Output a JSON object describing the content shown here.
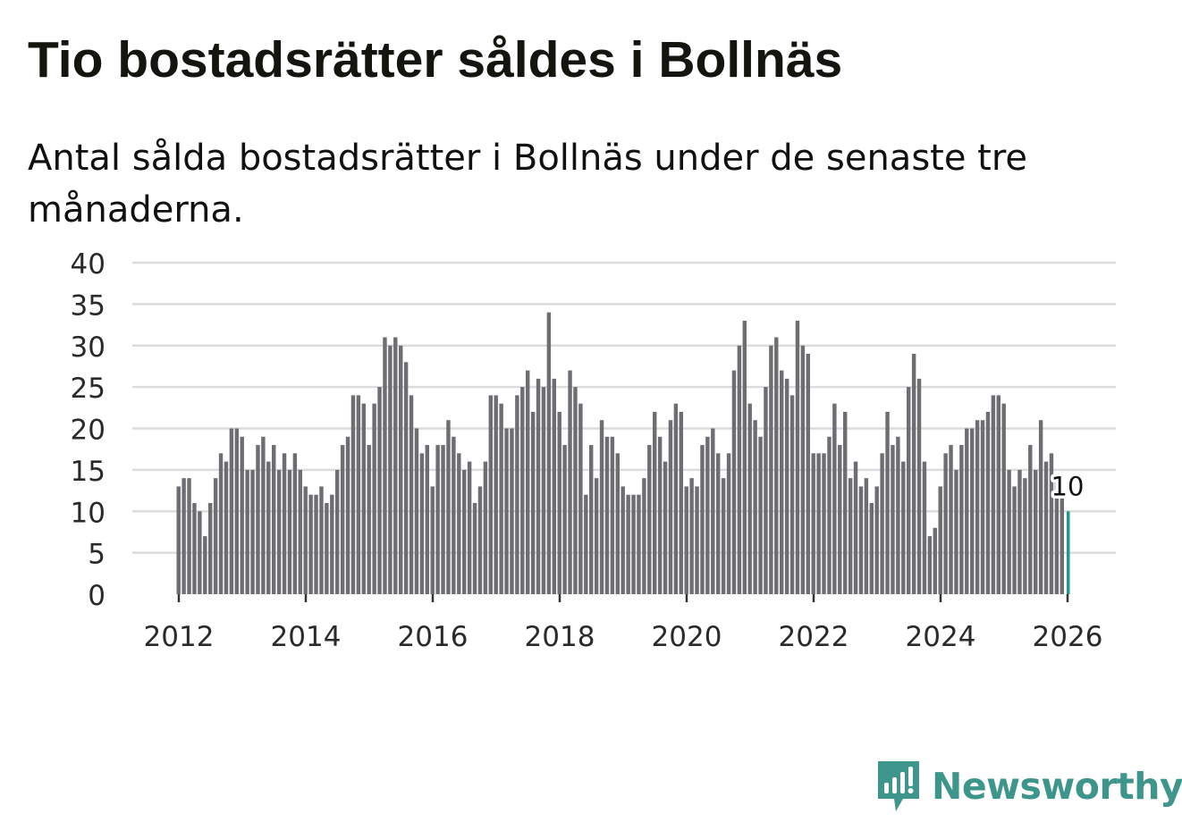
{
  "header": {
    "title": "Tio bostadsrätter såldes i Bollnäs",
    "subtitle": "Antal sålda bostadsrätter i Bollnäs under de senaste tre månaderna."
  },
  "brand": {
    "name": "Newsworthy",
    "color": "#3e958b",
    "icon": "newsworthy-logo-icon"
  },
  "colors": {
    "bar": "#6e6d72",
    "highlight": "#1c9890",
    "grid": "#dcdcdc",
    "axis": "#333333"
  },
  "chart_data": {
    "type": "bar",
    "title": "Tio bostadsrätter såldes i Bollnäs",
    "xlabel": "",
    "ylabel": "",
    "ylim": [
      0,
      40
    ],
    "yticks": [
      "0",
      "5",
      "10",
      "15",
      "20",
      "25",
      "30",
      "35",
      "40"
    ],
    "xticks": [
      "2012",
      "2014",
      "2016",
      "2018",
      "2020",
      "2022",
      "2024",
      "2026"
    ],
    "start": "2012-01",
    "highlight_label": "10",
    "values": [
      13,
      14,
      14,
      11,
      10,
      7,
      11,
      14,
      17,
      16,
      20,
      20,
      19,
      15,
      15,
      18,
      19,
      16,
      18,
      15,
      17,
      15,
      17,
      15,
      13,
      12,
      12,
      13,
      11,
      12,
      15,
      18,
      19,
      24,
      24,
      23,
      18,
      23,
      25,
      31,
      30,
      31,
      30,
      28,
      24,
      20,
      17,
      18,
      13,
      18,
      18,
      21,
      19,
      17,
      15,
      16,
      11,
      13,
      16,
      24,
      24,
      23,
      20,
      20,
      24,
      25,
      27,
      22,
      26,
      25,
      34,
      26,
      22,
      18,
      27,
      25,
      23,
      12,
      18,
      14,
      21,
      19,
      19,
      17,
      13,
      12,
      12,
      12,
      14,
      18,
      22,
      19,
      16,
      21,
      23,
      22,
      13,
      14,
      13,
      18,
      19,
      20,
      17,
      14,
      17,
      27,
      30,
      33,
      23,
      21,
      19,
      25,
      30,
      31,
      27,
      26,
      24,
      33,
      30,
      29,
      17,
      17,
      17,
      19,
      23,
      18,
      22,
      14,
      16,
      13,
      14,
      11,
      13,
      17,
      22,
      18,
      19,
      16,
      25,
      29,
      26,
      16,
      7,
      8,
      13,
      17,
      18,
      15,
      18,
      20,
      20,
      21,
      21,
      22,
      24,
      24,
      23,
      15,
      13,
      15,
      14,
      18,
      15,
      21,
      16,
      17,
      14,
      12,
      10
    ]
  }
}
